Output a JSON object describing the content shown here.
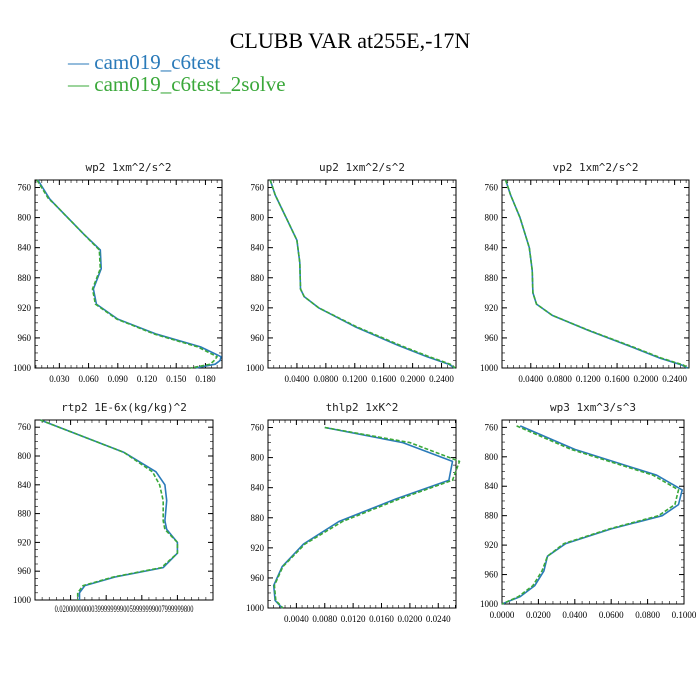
{
  "title": "CLUBB VAR at255E,-17N",
  "legend": [
    {
      "label": "— cam019_c6test",
      "color": "#2a7ab9"
    },
    {
      "label": "— cam019_c6test_2solve",
      "color": "#3aa83a"
    }
  ],
  "chart_data": [
    {
      "type": "line",
      "title": "wp2  1xm^2/s^2",
      "xlim": [
        0.005,
        0.197
      ],
      "ylim": [
        750,
        1000
      ],
      "xticks": [
        0.03,
        0.06,
        0.09,
        0.12,
        0.15,
        0.18
      ],
      "xticklabels": [
        "0.030",
        "0.060",
        "0.090",
        "0.120",
        "0.150",
        "0.180"
      ],
      "yticks": [
        760,
        800,
        840,
        880,
        920,
        960,
        1000
      ],
      "yticklabels": [
        "760",
        "800",
        "840",
        "880",
        "920",
        "960",
        "1000"
      ],
      "series": [
        {
          "name": "cam019_c6test",
          "color": "#2a7ab9",
          "dash": false,
          "x": [
            0.008,
            0.02,
            0.025,
            0.055,
            0.072,
            0.073,
            0.065,
            0.068,
            0.09,
            0.13,
            0.175,
            0.196,
            0.195,
            0.19,
            0.17
          ],
          "y": [
            750,
            775,
            782,
            822,
            843,
            868,
            895,
            915,
            935,
            955,
            972,
            985,
            990,
            995,
            1000
          ]
        },
        {
          "name": "cam019_c6test_2solve",
          "color": "#3aa83a",
          "dash": true,
          "x": [
            0.007,
            0.019,
            0.025,
            0.055,
            0.071,
            0.072,
            0.064,
            0.067,
            0.089,
            0.128,
            0.172,
            0.192,
            0.189,
            0.185,
            0.165
          ],
          "y": [
            750,
            775,
            782,
            822,
            843,
            868,
            895,
            915,
            935,
            955,
            972,
            985,
            990,
            995,
            1000
          ]
        }
      ]
    },
    {
      "type": "line",
      "title": "up2  1xm^2/s^2",
      "xlim": [
        0.0,
        0.26
      ],
      "ylim": [
        750,
        1000
      ],
      "xticks": [
        0.04,
        0.08,
        0.12,
        0.16,
        0.2,
        0.24
      ],
      "xticklabels": [
        "0.0400",
        "0.0800",
        "0.1200",
        "0.1600",
        "0.2000",
        "0.2400"
      ],
      "yticks": [
        760,
        800,
        840,
        880,
        920,
        960,
        1000
      ],
      "yticklabels": [
        "760",
        "800",
        "840",
        "880",
        "920",
        "960",
        "1000"
      ],
      "series": [
        {
          "name": "cam019_c6test",
          "color": "#2a7ab9",
          "dash": false,
          "x": [
            0.003,
            0.01,
            0.025,
            0.04,
            0.044,
            0.045,
            0.05,
            0.07,
            0.12,
            0.18,
            0.22,
            0.25,
            0.258
          ],
          "y": [
            750,
            770,
            800,
            830,
            860,
            895,
            905,
            920,
            945,
            970,
            985,
            995,
            1000
          ]
        },
        {
          "name": "cam019_c6test_2solve",
          "color": "#3aa83a",
          "dash": true,
          "x": [
            0.003,
            0.01,
            0.025,
            0.04,
            0.044,
            0.045,
            0.05,
            0.07,
            0.122,
            0.183,
            0.223,
            0.252,
            0.259
          ],
          "y": [
            750,
            770,
            800,
            830,
            860,
            895,
            905,
            920,
            945,
            970,
            985,
            995,
            1000
          ]
        }
      ]
    },
    {
      "type": "line",
      "title": "vp2  1xm^2/s^2",
      "xlim": [
        0.0,
        0.26
      ],
      "ylim": [
        750,
        1000
      ],
      "xticks": [
        0.04,
        0.08,
        0.12,
        0.16,
        0.2,
        0.24
      ],
      "xticklabels": [
        "0.0400",
        "0.0800",
        "0.1200",
        "0.1600",
        "0.2000",
        "0.2400"
      ],
      "yticks": [
        760,
        800,
        840,
        880,
        920,
        960,
        1000
      ],
      "yticklabels": [
        "760",
        "800",
        "840",
        "880",
        "920",
        "960",
        "1000"
      ],
      "series": [
        {
          "name": "cam019_c6test",
          "color": "#2a7ab9",
          "dash": false,
          "x": [
            0.005,
            0.012,
            0.025,
            0.038,
            0.042,
            0.043,
            0.048,
            0.07,
            0.12,
            0.18,
            0.22,
            0.25,
            0.258
          ],
          "y": [
            750,
            770,
            800,
            840,
            870,
            900,
            915,
            930,
            950,
            972,
            987,
            996,
            1000
          ]
        },
        {
          "name": "cam019_c6test_2solve",
          "color": "#3aa83a",
          "dash": true,
          "x": [
            0.005,
            0.012,
            0.025,
            0.038,
            0.042,
            0.043,
            0.048,
            0.07,
            0.121,
            0.182,
            0.222,
            0.252,
            0.259
          ],
          "y": [
            750,
            770,
            800,
            840,
            870,
            900,
            915,
            930,
            950,
            972,
            987,
            996,
            1000
          ]
        }
      ]
    },
    {
      "type": "line",
      "title": "rtp2  1E-6x(kg/kg)^2",
      "xlim": [
        0.0,
        0.1
      ],
      "ylim": [
        750,
        1000
      ],
      "xticks": [
        0.02,
        0.04,
        0.06,
        0.08
      ],
      "xticklabels": [
        "0.020000000",
        "0.0399999999",
        "0.0599999999",
        "0.0799999999"
      ],
      "tick_label_overlap": "0.020000000003999999990059999999007999999800",
      "yticks": [
        760,
        800,
        840,
        880,
        920,
        960,
        1000
      ],
      "yticklabels": [
        "760",
        "800",
        "840",
        "880",
        "920",
        "960",
        "1000"
      ],
      "series": [
        {
          "name": "cam019_c6test",
          "color": "#2a7ab9",
          "dash": false,
          "x": [
            0.003,
            0.05,
            0.068,
            0.073,
            0.074,
            0.073,
            0.074,
            0.08,
            0.08,
            0.072,
            0.045,
            0.028,
            0.025,
            0.025
          ],
          "y": [
            750,
            795,
            822,
            840,
            862,
            890,
            902,
            920,
            935,
            955,
            968,
            980,
            990,
            1000
          ]
        },
        {
          "name": "cam019_c6test_2solve",
          "color": "#3aa83a",
          "dash": true,
          "x": [
            0.003,
            0.05,
            0.066,
            0.07,
            0.072,
            0.072,
            0.073,
            0.08,
            0.08,
            0.071,
            0.044,
            0.027,
            0.024,
            0.024
          ],
          "y": [
            750,
            795,
            822,
            840,
            862,
            890,
            902,
            920,
            935,
            955,
            968,
            980,
            990,
            1000
          ]
        }
      ]
    },
    {
      "type": "line",
      "title": "thlp2  1xK^2",
      "xlim": [
        0.0,
        0.0265
      ],
      "ylim": [
        750,
        1000
      ],
      "xticks": [
        0.004,
        0.008,
        0.012,
        0.016,
        0.02,
        0.024
      ],
      "xticklabels": [
        "0.0040",
        "0.0080",
        "0.0120",
        "0.0160",
        "0.0200",
        "0.0240"
      ],
      "yticks": [
        760,
        800,
        840,
        880,
        920,
        960,
        1000
      ],
      "yticklabels": [
        "760",
        "800",
        "840",
        "880",
        "920",
        "960",
        "1000"
      ],
      "series": [
        {
          "name": "cam019_c6test",
          "color": "#2a7ab9",
          "dash": false,
          "x": [
            0.008,
            0.019,
            0.026,
            0.0255,
            0.018,
            0.01,
            0.005,
            0.002,
            0.0008,
            0.001,
            0.002
          ],
          "y": [
            760,
            780,
            805,
            830,
            855,
            885,
            915,
            945,
            970,
            990,
            1000
          ]
        },
        {
          "name": "cam019_c6test_2solve",
          "color": "#3aa83a",
          "dash": true,
          "x": [
            0.008,
            0.02,
            0.027,
            0.026,
            0.0185,
            0.0105,
            0.0052,
            0.0021,
            0.0009,
            0.0011,
            0.0021
          ],
          "y": [
            760,
            780,
            805,
            830,
            855,
            885,
            915,
            945,
            970,
            990,
            1000
          ]
        }
      ]
    },
    {
      "type": "line",
      "title": "wp3  1xm^3/s^3",
      "xlim": [
        0.0,
        0.1
      ],
      "ylim": [
        750,
        1000
      ],
      "xticks": [
        0.0,
        0.02,
        0.04,
        0.06,
        0.08,
        0.1
      ],
      "xticklabels": [
        "0.0000",
        "0.0200",
        "0.0400",
        "0.0600",
        "0.0800",
        "0.1000"
      ],
      "yticks": [
        760,
        800,
        840,
        880,
        920,
        960,
        1000
      ],
      "yticklabels": [
        "760",
        "800",
        "840",
        "880",
        "920",
        "960",
        "1000"
      ],
      "series": [
        {
          "name": "cam019_c6test",
          "color": "#2a7ab9",
          "dash": false,
          "x": [
            0.01,
            0.04,
            0.085,
            0.099,
            0.097,
            0.088,
            0.06,
            0.035,
            0.025,
            0.023,
            0.018,
            0.01,
            0.0
          ],
          "y": [
            758,
            790,
            825,
            845,
            865,
            880,
            898,
            918,
            935,
            955,
            975,
            990,
            1000
          ]
        },
        {
          "name": "cam019_c6test_2solve",
          "color": "#3aa83a",
          "dash": true,
          "x": [
            0.008,
            0.038,
            0.083,
            0.097,
            0.095,
            0.086,
            0.059,
            0.034,
            0.025,
            0.022,
            0.017,
            0.009,
            0.0
          ],
          "y": [
            758,
            790,
            825,
            845,
            865,
            880,
            898,
            918,
            935,
            955,
            975,
            990,
            1000
          ]
        }
      ]
    }
  ]
}
